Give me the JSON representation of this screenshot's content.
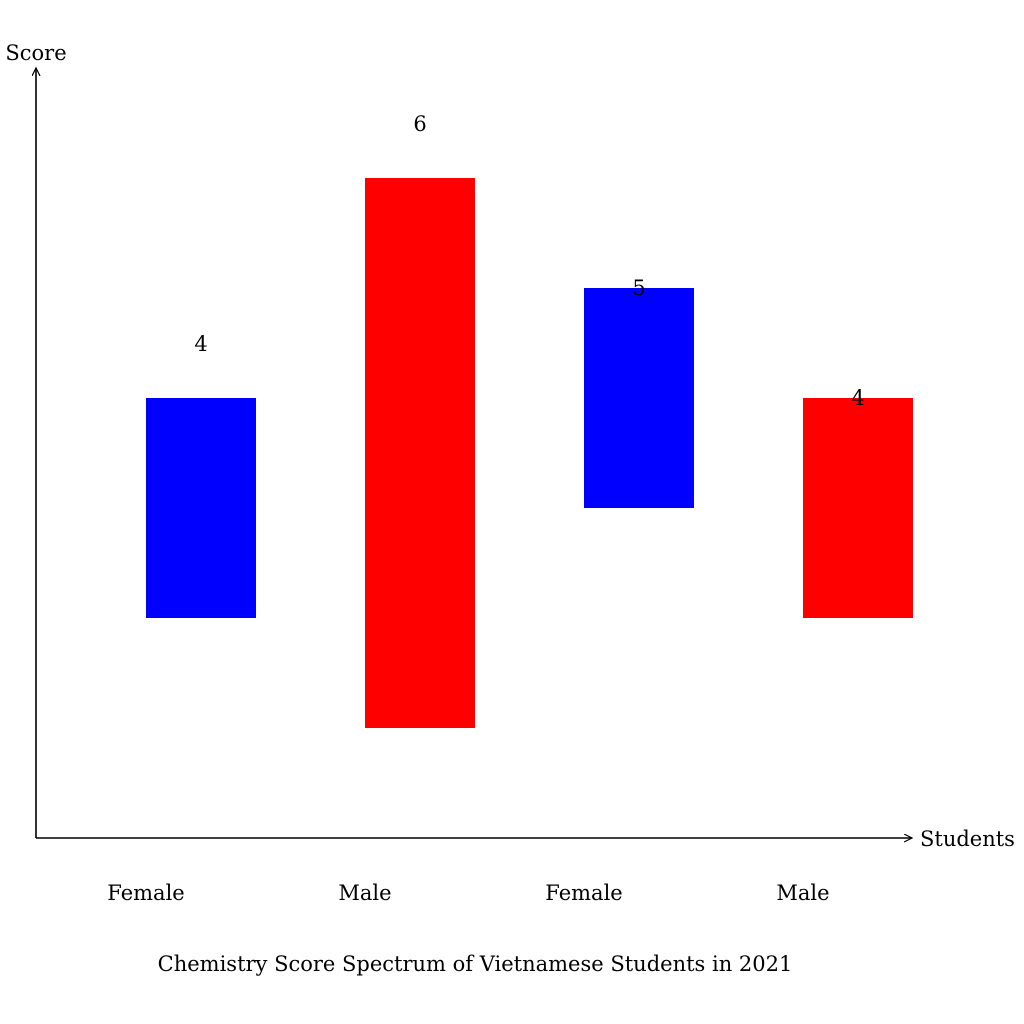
{
  "chart_data": {
    "type": "bar",
    "title": "Chemistry Score Spectrum of Vietnamese Students in 2021",
    "xlabel": "Students",
    "ylabel": "Score",
    "ylim": [
      0,
      7
    ],
    "grid": false,
    "categories": [
      "Female",
      "Male",
      "Female",
      "Male"
    ],
    "bars": [
      {
        "category": "Female",
        "low": 2,
        "high": 4,
        "label": "4",
        "color": "#0000ff"
      },
      {
        "category": "Male",
        "low": 1,
        "high": 6,
        "label": "6",
        "color": "#ff0000"
      },
      {
        "category": "Female",
        "low": 3,
        "high": 5,
        "label": "5",
        "color": "#0000ff"
      },
      {
        "category": "Male",
        "low": 2,
        "high": 4,
        "label": "4",
        "color": "#ff0000"
      }
    ]
  }
}
